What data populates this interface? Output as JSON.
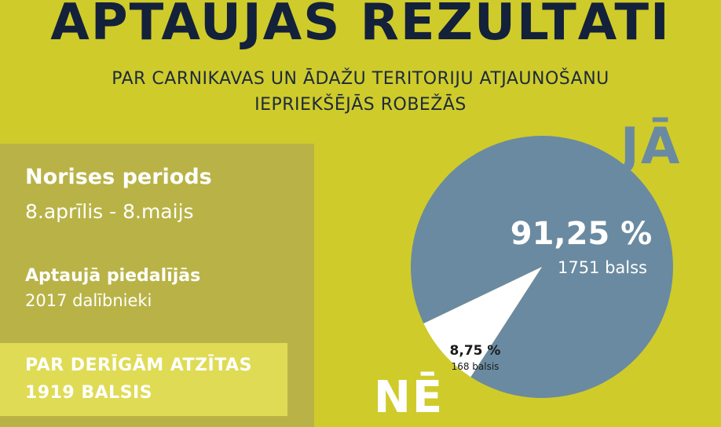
{
  "header": {
    "title": "APTAUJAS REZULTĀTI",
    "subtitle_line1": "PAR CARNIKAVAS UN ĀDAŽU TERITORIJU ATJAUNOŠANU",
    "subtitle_line2": "IEPRIEKŠĒJĀS ROBEŽĀS"
  },
  "info": {
    "period_label": "Norises periods",
    "period_value": "8.aprīlis - 8.maijs",
    "participants_label": "Aptaujā piedalījās",
    "participants_value": "2017 dalībnieki",
    "valid_line1": "PAR DERĪGĀM ATZĪTAS",
    "valid_line2": "1919 BALSIS"
  },
  "chart_data": {
    "type": "pie",
    "title": "",
    "slices": [
      {
        "name": "JĀ",
        "percent": 91.25,
        "percent_label": "91,25 %",
        "votes": 1751,
        "votes_label": "1751 balss",
        "color": "#6a8aa1"
      },
      {
        "name": "NĒ",
        "percent": 8.75,
        "percent_label": "8,75 %",
        "votes": 168,
        "votes_label": "168 balsis",
        "color": "#ffffff"
      }
    ]
  },
  "colors": {
    "background": "#cfcb2a",
    "panel": "#b9b347",
    "valid_box": "#dfdb55",
    "title": "#14213a",
    "yes": "#6a8aa1",
    "no": "#ffffff"
  }
}
